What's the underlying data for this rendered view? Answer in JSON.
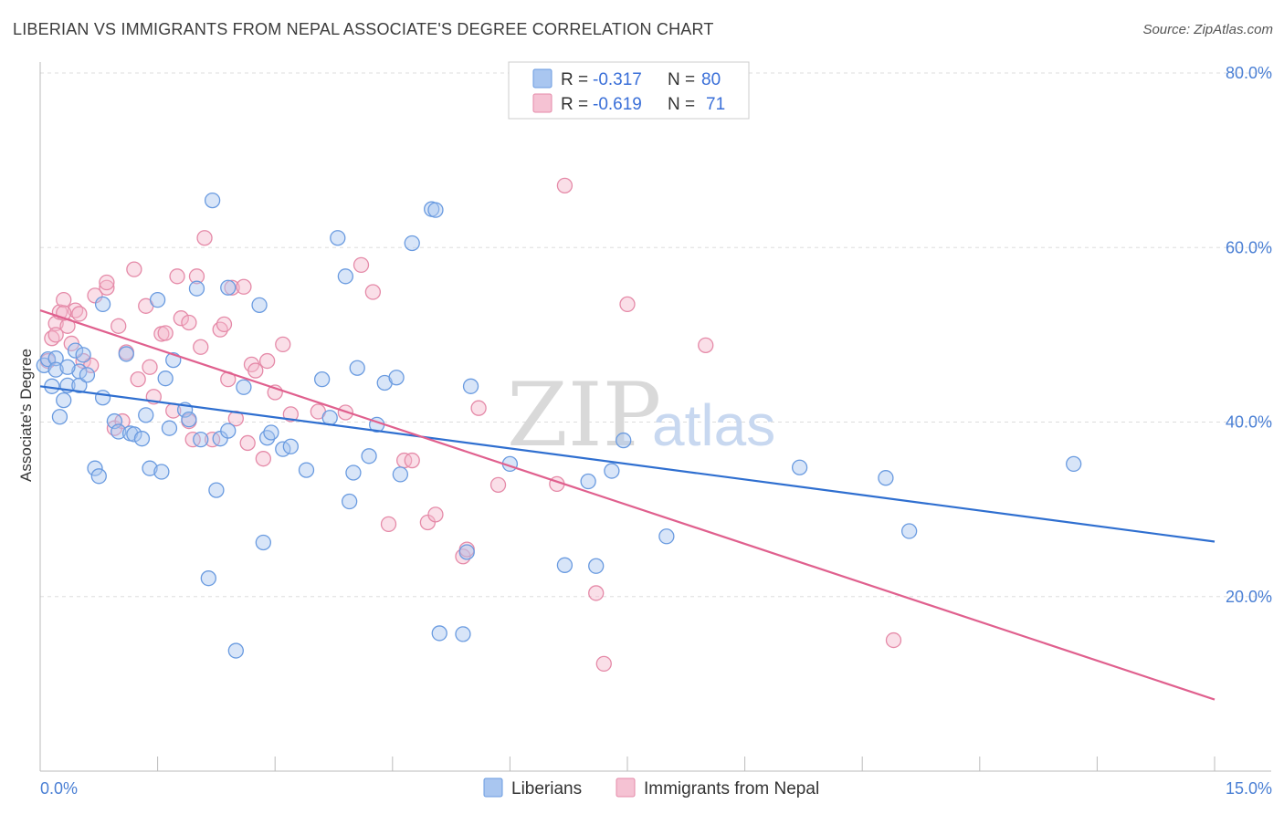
{
  "title": "LIBERIAN VS IMMIGRANTS FROM NEPAL ASSOCIATE'S DEGREE CORRELATION CHART",
  "source": "Source: ZipAtlas.com",
  "watermark": {
    "zip": "ZIP",
    "atlas": "atlas"
  },
  "legend": {
    "rows": [
      {
        "r_label": "R = ",
        "r_value": "-0.317",
        "n_label": "N = ",
        "n_value": "80"
      },
      {
        "r_label": "R = ",
        "r_value": "-0.619",
        "n_label": "N = ",
        "n_value": "71"
      }
    ]
  },
  "bottom_legend": [
    "Liberians",
    "Immigrants from Nepal"
  ],
  "colors": {
    "blue_fill": "#a9c6f0",
    "blue_stroke": "#6a9be0",
    "blue_line": "#2f6fd0",
    "pink_fill": "#f5b8cc",
    "pink_stroke": "#e58aa8",
    "pink_line": "#e0608e",
    "grid": "#dddddd",
    "tick_text": "#4a7fd4"
  },
  "chart_data": {
    "type": "scatter",
    "title": "LIBERIAN VS IMMIGRANTS FROM NEPAL ASSOCIATE'S DEGREE CORRELATION CHART",
    "xlabel": "",
    "ylabel": "Associate's Degree",
    "xlim": [
      0,
      15
    ],
    "ylim": [
      0,
      80
    ],
    "x_tick_labels": [
      "0.0%",
      "15.0%"
    ],
    "y_ticks": [
      20,
      40,
      60,
      80
    ],
    "y_tick_labels": [
      "20.0%",
      "40.0%",
      "60.0%",
      "80.0%"
    ],
    "grid": true,
    "legend_position": "top-center",
    "series": [
      {
        "name": "Liberians",
        "trend": {
          "x": [
            0,
            15
          ],
          "y": [
            44.1,
            26.3
          ]
        },
        "points": [
          [
            0.05,
            46.5
          ],
          [
            0.1,
            47.2
          ],
          [
            0.15,
            44.1
          ],
          [
            0.2,
            47.3
          ],
          [
            0.25,
            40.6
          ],
          [
            0.3,
            42.5
          ],
          [
            0.35,
            44.2
          ],
          [
            0.45,
            48.2
          ],
          [
            0.5,
            45.8
          ],
          [
            0.5,
            44.2
          ],
          [
            0.55,
            47.7
          ],
          [
            0.6,
            45.4
          ],
          [
            0.8,
            42.8
          ],
          [
            0.8,
            53.5
          ],
          [
            0.7,
            34.7
          ],
          [
            0.75,
            33.8
          ],
          [
            0.95,
            40.1
          ],
          [
            1.0,
            38.9
          ],
          [
            1.1,
            47.8
          ],
          [
            1.15,
            38.7
          ],
          [
            1.2,
            38.6
          ],
          [
            1.3,
            38.1
          ],
          [
            1.35,
            40.8
          ],
          [
            1.4,
            34.7
          ],
          [
            1.5,
            54.0
          ],
          [
            1.55,
            34.3
          ],
          [
            1.6,
            45.0
          ],
          [
            1.65,
            39.3
          ],
          [
            1.7,
            47.1
          ],
          [
            1.85,
            41.4
          ],
          [
            1.9,
            40.3
          ],
          [
            2.0,
            55.3
          ],
          [
            2.05,
            38.0
          ],
          [
            2.15,
            22.1
          ],
          [
            2.2,
            65.4
          ],
          [
            2.25,
            32.2
          ],
          [
            2.3,
            38.1
          ],
          [
            2.4,
            39.0
          ],
          [
            2.4,
            55.4
          ],
          [
            2.5,
            13.8
          ],
          [
            2.6,
            44.0
          ],
          [
            2.8,
            53.4
          ],
          [
            2.85,
            26.2
          ],
          [
            2.9,
            38.2
          ],
          [
            2.95,
            38.8
          ],
          [
            3.1,
            36.9
          ],
          [
            3.2,
            37.2
          ],
          [
            3.4,
            34.5
          ],
          [
            3.6,
            44.9
          ],
          [
            3.7,
            40.5
          ],
          [
            3.8,
            61.1
          ],
          [
            3.9,
            56.7
          ],
          [
            3.95,
            30.9
          ],
          [
            4.0,
            34.2
          ],
          [
            4.05,
            46.2
          ],
          [
            4.2,
            36.1
          ],
          [
            4.3,
            39.7
          ],
          [
            4.4,
            44.5
          ],
          [
            4.55,
            45.1
          ],
          [
            4.6,
            34.0
          ],
          [
            4.75,
            60.5
          ],
          [
            5.0,
            64.4
          ],
          [
            5.05,
            64.3
          ],
          [
            5.1,
            15.8
          ],
          [
            5.4,
            15.7
          ],
          [
            5.45,
            25.1
          ],
          [
            5.5,
            44.1
          ],
          [
            6.0,
            35.2
          ],
          [
            6.7,
            23.6
          ],
          [
            7.0,
            33.2
          ],
          [
            7.1,
            23.5
          ],
          [
            7.3,
            34.4
          ],
          [
            7.45,
            37.9
          ],
          [
            8.0,
            26.9
          ],
          [
            9.7,
            34.8
          ],
          [
            10.8,
            33.6
          ],
          [
            11.1,
            27.5
          ],
          [
            13.2,
            35.2
          ],
          [
            0.2,
            46.0
          ],
          [
            0.35,
            46.3
          ]
        ]
      },
      {
        "name": "Immigrants from Nepal",
        "trend": {
          "x": [
            0,
            15
          ],
          "y": [
            52.8,
            8.2
          ]
        },
        "points": [
          [
            0.1,
            47.0
          ],
          [
            0.15,
            49.6
          ],
          [
            0.2,
            51.3
          ],
          [
            0.25,
            52.6
          ],
          [
            0.3,
            54.0
          ],
          [
            0.35,
            51.0
          ],
          [
            0.4,
            49.0
          ],
          [
            0.45,
            52.8
          ],
          [
            0.5,
            52.4
          ],
          [
            0.55,
            47.0
          ],
          [
            0.65,
            46.5
          ],
          [
            0.7,
            54.5
          ],
          [
            0.85,
            55.4
          ],
          [
            0.85,
            56.0
          ],
          [
            0.95,
            39.3
          ],
          [
            1.0,
            51.0
          ],
          [
            1.05,
            40.1
          ],
          [
            1.1,
            48.0
          ],
          [
            1.2,
            57.5
          ],
          [
            1.25,
            44.9
          ],
          [
            1.35,
            53.3
          ],
          [
            1.4,
            46.3
          ],
          [
            1.45,
            42.9
          ],
          [
            1.55,
            50.1
          ],
          [
            1.6,
            50.2
          ],
          [
            1.7,
            41.3
          ],
          [
            1.75,
            56.7
          ],
          [
            1.8,
            51.9
          ],
          [
            1.9,
            51.4
          ],
          [
            1.9,
            40.1
          ],
          [
            1.95,
            38.0
          ],
          [
            2.0,
            56.7
          ],
          [
            2.05,
            48.6
          ],
          [
            2.1,
            61.1
          ],
          [
            2.2,
            38.0
          ],
          [
            2.3,
            50.6
          ],
          [
            2.35,
            51.2
          ],
          [
            2.4,
            44.9
          ],
          [
            2.45,
            55.4
          ],
          [
            2.5,
            40.4
          ],
          [
            2.6,
            55.5
          ],
          [
            2.65,
            37.6
          ],
          [
            2.7,
            46.6
          ],
          [
            2.75,
            45.9
          ],
          [
            2.85,
            35.8
          ],
          [
            2.9,
            47.0
          ],
          [
            3.0,
            43.4
          ],
          [
            3.1,
            48.9
          ],
          [
            3.2,
            40.9
          ],
          [
            3.55,
            41.2
          ],
          [
            3.9,
            41.1
          ],
          [
            4.1,
            58.0
          ],
          [
            4.25,
            54.9
          ],
          [
            4.45,
            28.3
          ],
          [
            4.65,
            35.6
          ],
          [
            4.75,
            35.6
          ],
          [
            4.95,
            28.5
          ],
          [
            5.05,
            29.4
          ],
          [
            5.4,
            24.6
          ],
          [
            5.45,
            25.4
          ],
          [
            5.6,
            41.6
          ],
          [
            5.85,
            32.8
          ],
          [
            6.6,
            32.9
          ],
          [
            6.7,
            67.1
          ],
          [
            7.1,
            20.4
          ],
          [
            7.2,
            12.3
          ],
          [
            7.5,
            53.5
          ],
          [
            8.5,
            48.8
          ],
          [
            10.9,
            15.0
          ],
          [
            0.2,
            50.0
          ],
          [
            0.3,
            52.5
          ]
        ]
      }
    ]
  }
}
